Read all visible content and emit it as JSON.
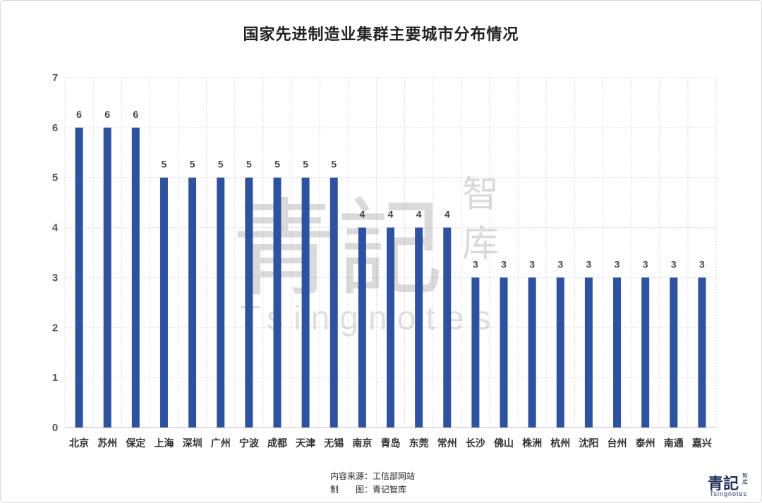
{
  "chart_data": {
    "type": "bar",
    "title": "国家先进制造业集群主要城市分布情况",
    "categories": [
      "北京",
      "苏州",
      "保定",
      "上海",
      "深圳",
      "广州",
      "宁波",
      "成都",
      "天津",
      "无锡",
      "南京",
      "青岛",
      "东莞",
      "常州",
      "长沙",
      "佛山",
      "株洲",
      "杭州",
      "沈阳",
      "台州",
      "泰州",
      "南通",
      "嘉兴"
    ],
    "values": [
      6,
      6,
      6,
      5,
      5,
      5,
      5,
      5,
      5,
      5,
      4,
      4,
      4,
      4,
      3,
      3,
      3,
      3,
      3,
      3,
      3,
      3,
      3
    ],
    "y_ticks": [
      "0",
      "1",
      "2",
      "3",
      "4",
      "5",
      "6",
      "7"
    ],
    "ylim": [
      0,
      7
    ],
    "xlabel": "",
    "ylabel": "",
    "grid": true,
    "bar_color": "#2f52a0"
  },
  "watermark": {
    "main": "青記",
    "side": [
      "智",
      "库"
    ],
    "latin": "Tsingnotes"
  },
  "footer": {
    "source": "内容来源：工信部网站",
    "maker": "制　　图：青记智库"
  },
  "logo": {
    "main": "青記",
    "side": "智库",
    "latin": "Tsingnotes"
  }
}
